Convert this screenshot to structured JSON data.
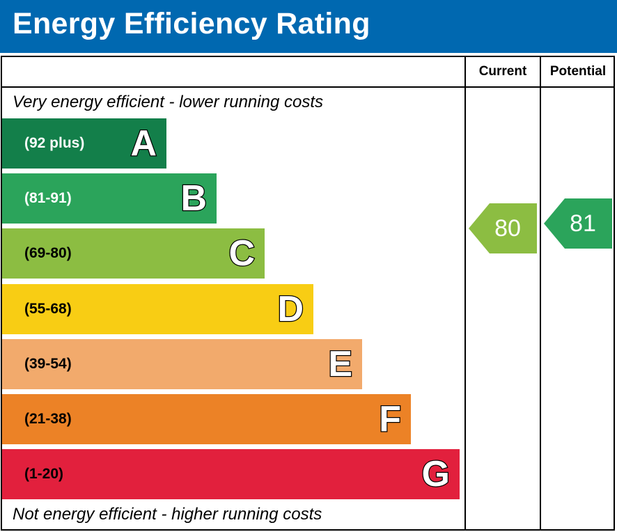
{
  "title": "Energy Efficiency Rating",
  "columns": {
    "current": "Current",
    "potential": "Potential"
  },
  "top_note": "Very energy efficient - lower running costs",
  "bottom_note": "Not energy efficient - higher running costs",
  "chart_data": {
    "type": "bar",
    "categories": [
      "A",
      "B",
      "C",
      "D",
      "E",
      "F",
      "G"
    ],
    "bands": [
      {
        "letter": "A",
        "range": "(92 plus)",
        "color": "#137f4a",
        "text_color": "#ffffff"
      },
      {
        "letter": "B",
        "range": "(81-91)",
        "color": "#2ba45b",
        "text_color": "#ffffff"
      },
      {
        "letter": "C",
        "range": "(69-80)",
        "color": "#8cbd42",
        "text_color": "#000000"
      },
      {
        "letter": "D",
        "range": "(55-68)",
        "color": "#f8cd14",
        "text_color": "#000000"
      },
      {
        "letter": "E",
        "range": "(39-54)",
        "color": "#f2aa6c",
        "text_color": "#000000"
      },
      {
        "letter": "F",
        "range": "(21-38)",
        "color": "#ec8226",
        "text_color": "#000000"
      },
      {
        "letter": "G",
        "range": "(1-20)",
        "color": "#e2203d",
        "text_color": "#000000"
      }
    ],
    "current": {
      "value": "80",
      "band": "C",
      "color": "#8cbd42"
    },
    "potential": {
      "value": "81",
      "band": "B",
      "color": "#2ba45b"
    }
  }
}
